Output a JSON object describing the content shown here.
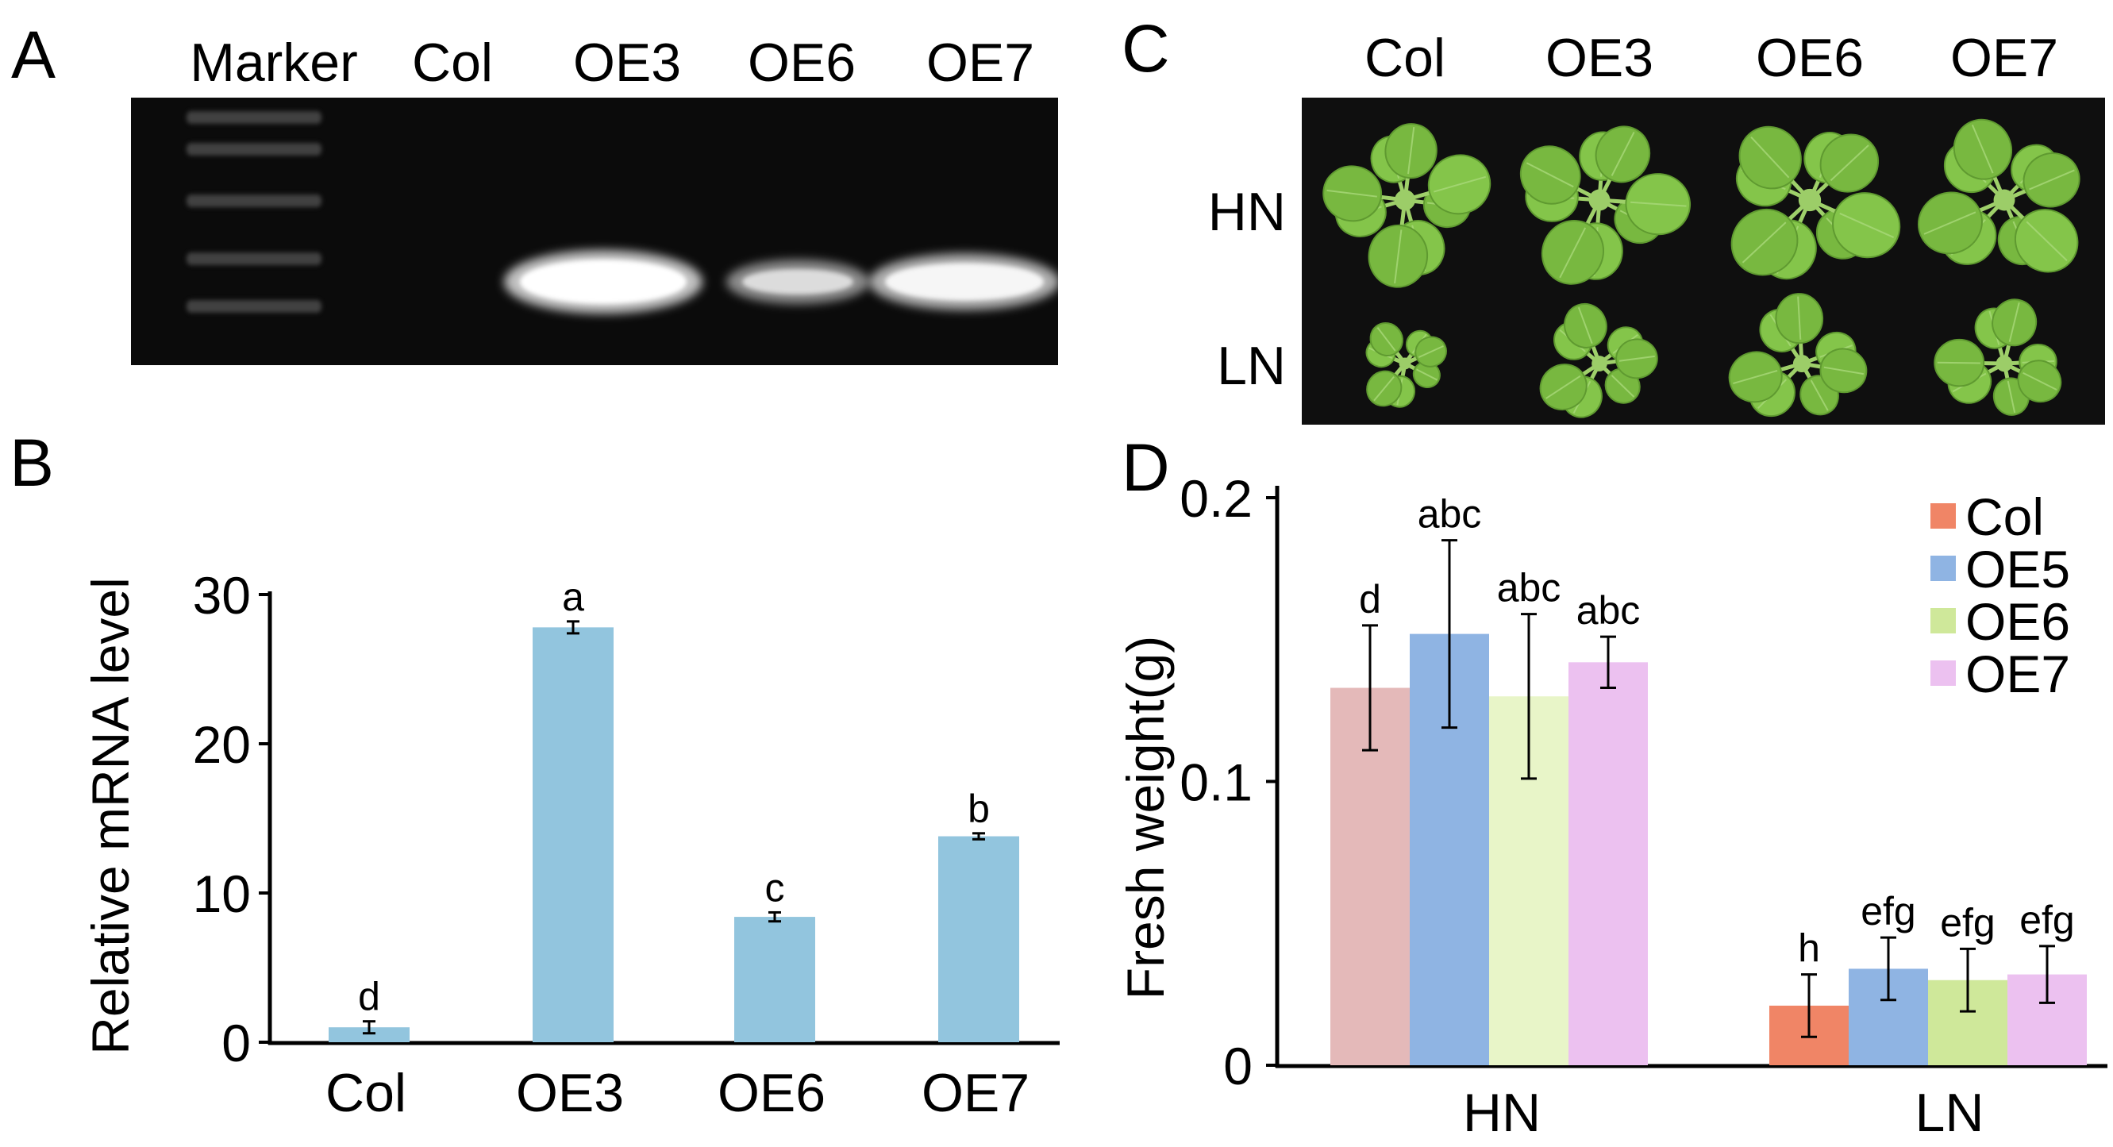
{
  "panels": {
    "a": {
      "letter": "A",
      "lanes": [
        "Marker",
        "Col",
        "OE3",
        "OE6",
        "OE7"
      ],
      "band_intensity": [
        0,
        0,
        1.0,
        0.45,
        0.8
      ]
    },
    "c": {
      "letter": "C",
      "columns": [
        "Col",
        "OE3",
        "OE6",
        "OE7"
      ],
      "rows": [
        "HN",
        "LN"
      ]
    }
  },
  "colors": {
    "bar_b": "#92c5de",
    "col": "#f08566",
    "oe5": "#8fb4e3",
    "oe6": "#cfe89a",
    "oe7": "#ecc1f0",
    "photo_bg": "#0f0f0f",
    "leaf": "#7fc146"
  },
  "chart_data": [
    {
      "panel": "B",
      "type": "bar",
      "categories": [
        "Col",
        "OE3",
        "OE6",
        "OE7"
      ],
      "values": [
        1.0,
        27.8,
        8.4,
        13.8
      ],
      "errors": [
        0.4,
        0.4,
        0.3,
        0.2
      ],
      "letters": [
        "d",
        "a",
        "c",
        "b"
      ],
      "title": "",
      "xlabel": "",
      "ylabel": "Relative mRNA level",
      "ylim": [
        0,
        30
      ],
      "yticks": [
        0,
        10,
        20,
        30
      ],
      "grid": false
    },
    {
      "panel": "D",
      "type": "bar",
      "categories": [
        "HN",
        "LN"
      ],
      "series": [
        {
          "name": "Col",
          "values": [
            0.133,
            0.021
          ],
          "errors": [
            0.022,
            0.011
          ],
          "letters": [
            "d",
            "h"
          ],
          "colors": [
            "#e4b9b9",
            "#f08566"
          ]
        },
        {
          "name": "OE5",
          "values": [
            0.152,
            0.034
          ],
          "errors": [
            0.033,
            0.011
          ],
          "letters": [
            "abc",
            "efg"
          ],
          "colors": [
            "#8fb4e3",
            "#8fb4e3"
          ]
        },
        {
          "name": "OE6",
          "values": [
            0.13,
            0.03
          ],
          "errors": [
            0.029,
            0.011
          ],
          "letters": [
            "abc",
            "efg"
          ],
          "colors": [
            "#e8f5c8",
            "#cfe89a"
          ]
        },
        {
          "name": "OE7",
          "values": [
            0.142,
            0.032
          ],
          "errors": [
            0.009,
            0.01
          ],
          "letters": [
            "abc",
            "efg"
          ],
          "colors": [
            "#ecc1f0",
            "#ecc1f0"
          ]
        }
      ],
      "title": "",
      "xlabel": "",
      "ylabel": "Fresh weight(g)",
      "ylim": [
        0,
        0.2
      ],
      "yticks": [
        "0",
        "0.1",
        "0.2"
      ],
      "grid": false,
      "legend": "top-right"
    }
  ]
}
